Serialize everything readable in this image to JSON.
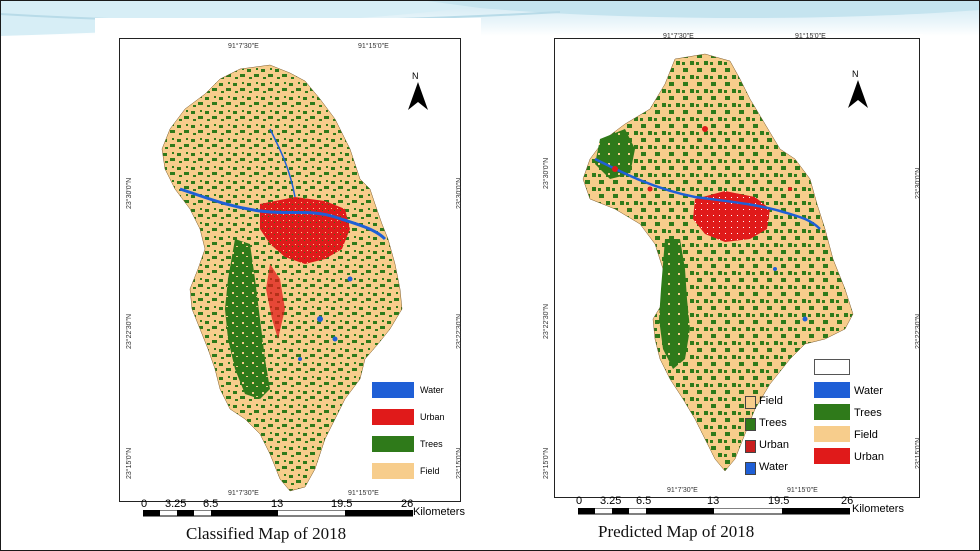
{
  "colors": {
    "water": "#1f5fd6",
    "urban": "#e01a1a",
    "trees": "#2f7a1a",
    "field": "#f7cd8c",
    "background": "#ffffff"
  },
  "left_map": {
    "caption": "Classified Map of 2018",
    "north_label": "N",
    "top_coords": [
      "91°7'30\"E",
      "91°15'0\"E"
    ],
    "bottom_coords": [
      "91°7'30\"E",
      "91°15'0\"E"
    ],
    "left_coords": [
      "23°30'0\"N",
      "23°22'30\"N",
      "23°15'0\"N"
    ],
    "right_coords": [
      "23°30'0\"N",
      "23°22'30\"N",
      "23°15'0\"N"
    ],
    "legend": [
      {
        "label": "Water",
        "color": "#1f5fd6"
      },
      {
        "label": "Urban",
        "color": "#e01a1a"
      },
      {
        "label": "Trees",
        "color": "#2f7a1a"
      },
      {
        "label": "Field",
        "color": "#f7cd8c"
      }
    ],
    "scale_ticks": [
      "0",
      "3.25",
      "6.5",
      "13",
      "19.5",
      "26"
    ],
    "scale_unit": "Kilometers"
  },
  "right_map": {
    "caption": "Predicted Map of 2018",
    "north_label": "N",
    "top_coords": [
      "91°7'30\"E",
      "91°15'0\"E"
    ],
    "bottom_coords": [
      "91°7'30\"E",
      "91°15'0\"E"
    ],
    "left_coords": [
      "23°30'0\"N",
      "23°22'30\"N",
      "23°15'0\"N"
    ],
    "right_coords": [
      "23°30'0\"N",
      "23°22'30\"N",
      "23°15'0\"N"
    ],
    "legend_a": [
      {
        "label": "Field",
        "color": "#f7cd8c"
      },
      {
        "label": "Trees",
        "color": "#2f7a1a"
      },
      {
        "label": "Urban",
        "color": "#c81e1e"
      },
      {
        "label": "Water",
        "color": "#1f5fd6"
      }
    ],
    "legend_b": [
      {
        "label": "",
        "color": "#ffffff"
      },
      {
        "label": "Water",
        "color": "#1f5fd6"
      },
      {
        "label": "Trees",
        "color": "#2f7a1a"
      },
      {
        "label": "Field",
        "color": "#f7cd8c"
      },
      {
        "label": "Urban",
        "color": "#e01a1a"
      }
    ],
    "scale_ticks": [
      "0",
      "3.25",
      "6.5",
      "13",
      "19.5",
      "26"
    ],
    "scale_unit": "Kilometers"
  }
}
